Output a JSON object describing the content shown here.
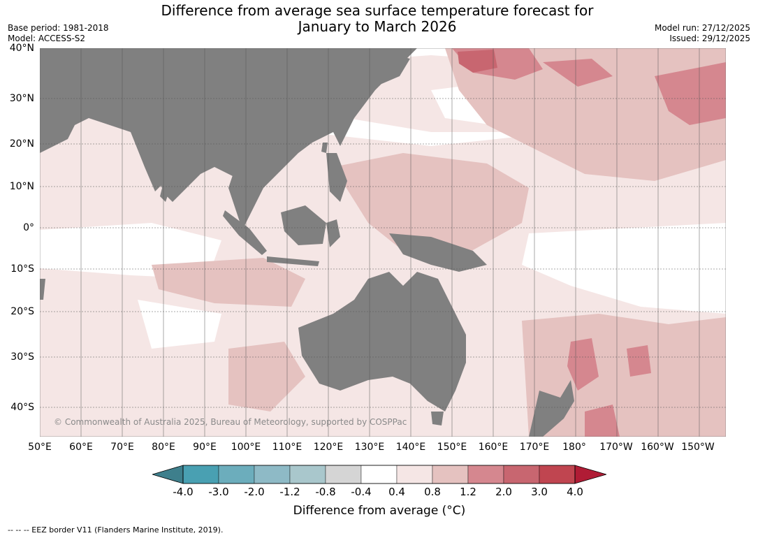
{
  "title_line1": "Difference from average sea surface temperature forecast for",
  "title_line2": "January to March 2026",
  "meta_left": {
    "base_period": "Base period: 1981-2018",
    "model": "Model: ACCESS-S2"
  },
  "meta_right": {
    "model_run": "Model run: 27/12/2025",
    "issued": "Issued: 29/12/2025"
  },
  "latitude_labels": [
    "40°N",
    "30°N",
    "20°N",
    "10°N",
    "0°",
    "10°S",
    "20°S",
    "30°S",
    "40°S"
  ],
  "longitude_labels": [
    "50°E",
    "60°E",
    "70°E",
    "80°E",
    "90°E",
    "100°E",
    "110°E",
    "120°E",
    "130°E",
    "140°E",
    "150°E",
    "160°E",
    "170°E",
    "180°",
    "170°W",
    "160°W",
    "150°W"
  ],
  "copyright": "© Commonwealth of Australia 2025, Bureau of Meteorology, supported by COSPPac",
  "colorbar": {
    "tick_labels": [
      "-4.0",
      "-3.0",
      "-2.0",
      "-1.2",
      "-0.8",
      "-0.4",
      "0.4",
      "0.8",
      "1.2",
      "2.0",
      "3.0",
      "4.0"
    ],
    "colors": [
      "#3e7f8c",
      "#49a0b2",
      "#6cadbc",
      "#8ebac6",
      "#a9c7cc",
      "#d5d5d5",
      "#ffffff",
      "#f5e6e5",
      "#e5c2c0",
      "#d5878f",
      "#c86670",
      "#c04550",
      "#b01c35"
    ],
    "label": "Difference from average (°C)"
  },
  "colors": {
    "land": "#808080",
    "anomaly_light": "#f5e6e5",
    "anomaly_medium": "#e5c2c0",
    "anomaly_high": "#d5878f",
    "anomaly_higher": "#c86670"
  },
  "footer": "--  --  -- EEZ border V11 (Flanders Marine Institute, 2019)."
}
